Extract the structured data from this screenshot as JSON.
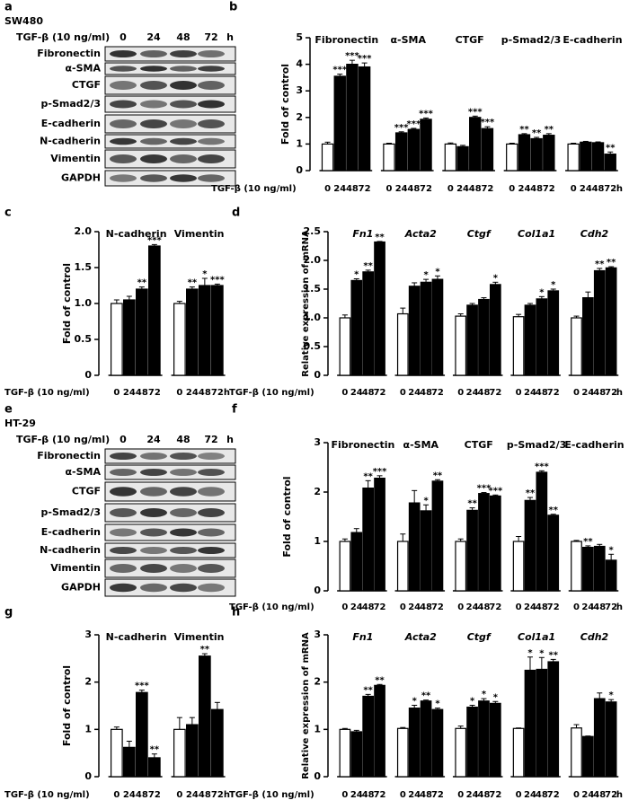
{
  "blots": [
    {
      "panel_label": "a",
      "cell_line": "SW480",
      "treatment": "TGF-β (10 ng/ml)",
      "time_points": [
        "0",
        "24",
        "48",
        "72"
      ],
      "time_unit": "h",
      "proteins": [
        "Fibronectin",
        "α-SMA",
        "CTGF",
        "p-Smad2/3",
        "E-cadherin",
        "N-cadherin",
        "Vimentin",
        "GAPDH"
      ]
    },
    {
      "panel_label": "e",
      "cell_line": "HT-29",
      "treatment": "TGF-β (10 ng/ml)",
      "time_points": [
        "0",
        "24",
        "48",
        "72"
      ],
      "time_unit": "h",
      "proteins": [
        "Fibronectin",
        "α-SMA",
        "CTGF",
        "p-Smad2/3",
        "E-cadherin",
        "N-cadherin",
        "Vimentin",
        "GAPDH"
      ]
    }
  ],
  "chart_data": [
    {
      "type": "bar",
      "panel_label": "b",
      "ylabel": "Fold of control",
      "x_label": "TGF-β (10 ng/ml)",
      "x_unit": "h",
      "categories": [
        "0",
        "24",
        "48",
        "72"
      ],
      "colors": [
        "#ffffff",
        "#000000",
        "#000000",
        "#000000"
      ],
      "italic_groups": false,
      "ylim": [
        0,
        5
      ],
      "yticks": [
        0,
        1,
        2,
        3,
        4,
        5
      ],
      "groups": [
        {
          "name": "Fibronectin",
          "values": [
            1,
            3.55,
            4.0,
            3.9
          ],
          "errors": [
            0.07,
            0.08,
            0.15,
            0.15
          ],
          "significance": [
            null,
            "***",
            "***",
            "***"
          ]
        },
        {
          "name": "α-SMA",
          "values": [
            1,
            1.42,
            1.55,
            1.93
          ],
          "errors": [
            0.03,
            0.04,
            0.04,
            0.05
          ],
          "significance": [
            null,
            "***",
            "***",
            "***"
          ]
        },
        {
          "name": "CTGF",
          "values": [
            1,
            0.9,
            2.0,
            1.58
          ],
          "errors": [
            0.04,
            0.05,
            0.05,
            0.07
          ],
          "significance": [
            null,
            null,
            "***",
            "***"
          ]
        },
        {
          "name": "p-Smad2/3",
          "values": [
            1,
            1.35,
            1.2,
            1.33
          ],
          "errors": [
            0.03,
            0.04,
            0.05,
            0.06
          ],
          "significance": [
            null,
            "**",
            "**",
            "**"
          ]
        },
        {
          "name": "E-cadherin",
          "values": [
            1,
            1.07,
            1.05,
            0.62
          ],
          "errors": [
            0.03,
            0.03,
            0.03,
            0.08
          ],
          "significance": [
            null,
            null,
            null,
            "**"
          ]
        }
      ]
    },
    {
      "type": "bar",
      "panel_label": "c",
      "ylabel": "Fold of control",
      "x_label": "TGF-β (10 ng/ml)",
      "x_unit": "h",
      "categories": [
        "0",
        "24",
        "48",
        "72"
      ],
      "colors": [
        "#ffffff",
        "#000000",
        "#000000",
        "#000000"
      ],
      "italic_groups": false,
      "ylim": [
        0,
        2
      ],
      "yticks": [
        0,
        0.5,
        {
          "value": 1,
          "label": "1.0"
        },
        1.5,
        {
          "value": 2,
          "label": "2.0"
        }
      ],
      "groups": [
        {
          "name": "N-cadherin",
          "values": [
            1,
            1.05,
            1.2,
            1.8
          ],
          "errors": [
            0.05,
            0.05,
            0.03,
            0.02
          ],
          "significance": [
            null,
            null,
            "**",
            "***"
          ]
        },
        {
          "name": "Vimentin",
          "values": [
            1,
            1.2,
            1.25,
            1.25
          ],
          "errors": [
            0.03,
            0.03,
            0.1,
            0.02
          ],
          "significance": [
            null,
            "**",
            "*",
            "***"
          ]
        }
      ]
    },
    {
      "type": "bar",
      "panel_label": "d",
      "ylabel": "Relative expression of mRNA",
      "x_label": "TGF-β (10 ng/ml)",
      "x_unit": "h",
      "categories": [
        "0",
        "24",
        "48",
        "72"
      ],
      "colors": [
        "#ffffff",
        "#000000",
        "#000000",
        "#000000"
      ],
      "italic_groups": true,
      "ylim": [
        0,
        2.5
      ],
      "yticks": [
        0,
        0.5,
        {
          "value": 1,
          "label": "1.0"
        },
        1.5,
        {
          "value": 2,
          "label": "2.0"
        },
        2.5
      ],
      "groups": [
        {
          "name": "Fn1",
          "values": [
            1,
            1.65,
            1.8,
            2.32
          ],
          "errors": [
            0.05,
            0.03,
            0.03,
            0.01
          ],
          "significance": [
            null,
            "*",
            "**",
            "**"
          ]
        },
        {
          "name": "Acta2",
          "values": [
            1.07,
            1.55,
            1.62,
            1.67
          ],
          "errors": [
            0.1,
            0.06,
            0.05,
            0.06
          ],
          "significance": [
            null,
            null,
            "*",
            "*"
          ]
        },
        {
          "name": "Ctgf",
          "values": [
            1.03,
            1.22,
            1.32,
            1.58
          ],
          "errors": [
            0.04,
            0.03,
            0.03,
            0.04
          ],
          "significance": [
            null,
            null,
            null,
            "*"
          ]
        },
        {
          "name": "Col1a1",
          "values": [
            1.02,
            1.22,
            1.33,
            1.47
          ],
          "errors": [
            0.04,
            0.03,
            0.04,
            0.03
          ],
          "significance": [
            null,
            null,
            "*",
            "*"
          ]
        },
        {
          "name": "Cdh2",
          "values": [
            1.0,
            1.35,
            1.82,
            1.87
          ],
          "errors": [
            0.03,
            0.1,
            0.04,
            0.02
          ],
          "significance": [
            null,
            null,
            "**",
            "**"
          ]
        }
      ]
    },
    {
      "type": "bar",
      "panel_label": "f",
      "ylabel": "Fold of control",
      "x_label": "TGF-β (10 ng/ml)",
      "x_unit": "h",
      "categories": [
        "0",
        "24",
        "48",
        "72"
      ],
      "colors": [
        "#ffffff",
        "#000000",
        "#000000",
        "#000000"
      ],
      "italic_groups": false,
      "ylim": [
        0,
        3
      ],
      "yticks": [
        0,
        1,
        2,
        3
      ],
      "groups": [
        {
          "name": "Fibronectin",
          "values": [
            1,
            1.18,
            2.08,
            2.28
          ],
          "errors": [
            0.05,
            0.08,
            0.15,
            0.05
          ],
          "significance": [
            null,
            null,
            "**",
            "***"
          ]
        },
        {
          "name": "α-SMA",
          "values": [
            1,
            1.78,
            1.62,
            2.22
          ],
          "errors": [
            0.15,
            0.25,
            0.12,
            0.03
          ],
          "significance": [
            null,
            null,
            "*",
            "**"
          ]
        },
        {
          "name": "CTGF",
          "values": [
            1,
            1.63,
            1.97,
            1.92
          ],
          "errors": [
            0.05,
            0.05,
            0.02,
            0.02
          ],
          "significance": [
            null,
            "**",
            "***",
            "***"
          ]
        },
        {
          "name": "p-Smad2/3",
          "values": [
            1,
            1.83,
            2.4,
            1.53
          ],
          "errors": [
            0.1,
            0.06,
            0.03,
            0.02
          ],
          "significance": [
            null,
            "**",
            "***",
            "**"
          ]
        },
        {
          "name": "E-cadherin",
          "values": [
            1,
            0.88,
            0.9,
            0.62
          ],
          "errors": [
            0.02,
            0.03,
            0.04,
            0.12
          ],
          "significance": [
            null,
            "**",
            null,
            "*"
          ]
        }
      ]
    },
    {
      "type": "bar",
      "panel_label": "g",
      "ylabel": "Fold of control",
      "x_label": "TGF-β (10 ng/ml)",
      "x_unit": "h",
      "categories": [
        "0",
        "24",
        "48",
        "72"
      ],
      "colors": [
        "#ffffff",
        "#000000",
        "#000000",
        "#000000"
      ],
      "italic_groups": false,
      "ylim": [
        0,
        3
      ],
      "yticks": [
        0,
        1,
        2,
        3
      ],
      "groups": [
        {
          "name": "N-cadherin",
          "values": [
            1,
            0.62,
            1.78,
            0.4
          ],
          "errors": [
            0.05,
            0.13,
            0.05,
            0.08
          ],
          "significance": [
            null,
            null,
            "***",
            "**"
          ]
        },
        {
          "name": "Vimentin",
          "values": [
            1,
            1.1,
            2.55,
            1.42
          ],
          "errors": [
            0.25,
            0.15,
            0.05,
            0.15
          ],
          "significance": [
            null,
            null,
            "**",
            null
          ]
        }
      ]
    },
    {
      "type": "bar",
      "panel_label": "h",
      "ylabel": "Relative expression of mRNA",
      "x_label": "TGF-β (10 ng/ml)",
      "x_unit": "h",
      "categories": [
        "0",
        "24",
        "48",
        "72"
      ],
      "colors": [
        "#ffffff",
        "#000000",
        "#000000",
        "#000000"
      ],
      "italic_groups": true,
      "ylim": [
        0,
        3
      ],
      "yticks": [
        0,
        1,
        2,
        3
      ],
      "groups": [
        {
          "name": "Fn1",
          "values": [
            1,
            0.95,
            1.7,
            1.93
          ],
          "errors": [
            0.02,
            0.03,
            0.04,
            0.02
          ],
          "significance": [
            null,
            null,
            "**",
            "**"
          ]
        },
        {
          "name": "Acta2",
          "values": [
            1.02,
            1.45,
            1.6,
            1.42
          ],
          "errors": [
            0.02,
            0.06,
            0.02,
            0.03
          ],
          "significance": [
            null,
            "*",
            "**",
            "*"
          ]
        },
        {
          "name": "Ctgf",
          "values": [
            1.02,
            1.47,
            1.6,
            1.55
          ],
          "errors": [
            0.05,
            0.04,
            0.05,
            0.04
          ],
          "significance": [
            null,
            "*",
            "*",
            "*"
          ]
        },
        {
          "name": "Col1a1",
          "values": [
            1.02,
            2.25,
            2.27,
            2.43
          ],
          "errors": [
            0.01,
            0.28,
            0.25,
            0.05
          ],
          "significance": [
            null,
            "*",
            "*",
            "**"
          ]
        },
        {
          "name": "Cdh2",
          "values": [
            1.03,
            0.85,
            1.65,
            1.58
          ],
          "errors": [
            0.07,
            0.01,
            0.12,
            0.05
          ],
          "significance": [
            null,
            null,
            null,
            "*"
          ]
        }
      ]
    }
  ]
}
